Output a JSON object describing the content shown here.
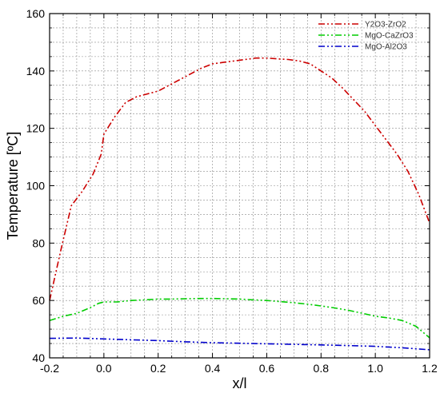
{
  "chart_data": {
    "type": "line",
    "xlabel": "x/l",
    "ylabel": "Temperature [ºC]",
    "xlim": [
      -0.2,
      1.2
    ],
    "ylim": [
      40,
      160
    ],
    "xticks": [
      -0.2,
      0.0,
      0.2,
      0.4,
      0.6,
      0.8,
      1.0,
      1.2
    ],
    "xtick_labels": [
      "-0.2",
      "0.0",
      "0.2",
      "0.4",
      "0.6",
      "0.8",
      "1.0",
      "1.2"
    ],
    "yticks": [
      40,
      60,
      80,
      100,
      120,
      140,
      160
    ],
    "ytick_labels": [
      "40",
      "60",
      "80",
      "100",
      "120",
      "140",
      "160"
    ],
    "grid": true,
    "legend_position": "top-right",
    "series": [
      {
        "name": "Y2O3-ZrO2",
        "color": "#cc0000",
        "x": [
          -0.2,
          -0.16,
          -0.12,
          -0.08,
          -0.04,
          -0.01,
          0.0,
          0.04,
          0.08,
          0.12,
          0.16,
          0.2,
          0.24,
          0.28,
          0.32,
          0.36,
          0.4,
          0.44,
          0.48,
          0.52,
          0.56,
          0.6,
          0.64,
          0.68,
          0.72,
          0.76,
          0.8,
          0.84,
          0.88,
          0.92,
          0.96,
          1.0,
          1.04,
          1.08,
          1.12,
          1.16,
          1.2
        ],
        "values": [
          60,
          77,
          93,
          98,
          104,
          111,
          118,
          124,
          129,
          131,
          132,
          133,
          135,
          137,
          139,
          141,
          142.5,
          143,
          143.5,
          144,
          144.5,
          144.5,
          144.2,
          144,
          143.5,
          142.5,
          140,
          137.5,
          134,
          130,
          126,
          121,
          116,
          111,
          105,
          97,
          87
        ]
      },
      {
        "name": "MgO-CaZrO3",
        "color": "#00cc00",
        "x": [
          -0.2,
          -0.15,
          -0.1,
          -0.05,
          -0.02,
          0.0,
          0.05,
          0.1,
          0.15,
          0.2,
          0.25,
          0.3,
          0.35,
          0.4,
          0.45,
          0.5,
          0.55,
          0.6,
          0.65,
          0.7,
          0.75,
          0.8,
          0.85,
          0.9,
          0.95,
          1.0,
          1.05,
          1.1,
          1.15,
          1.2
        ],
        "values": [
          53,
          54.5,
          55.5,
          57.5,
          59,
          59.5,
          59.5,
          60,
          60.2,
          60.5,
          60.5,
          60.6,
          60.7,
          60.7,
          60.6,
          60.5,
          60.2,
          60,
          59.6,
          59.2,
          58.7,
          58.1,
          57.4,
          56.6,
          55.6,
          54.5,
          53.9,
          53,
          51,
          47
        ]
      },
      {
        "name": "MgO-Al2O3",
        "color": "#0000cc",
        "x": [
          -0.2,
          -0.1,
          0.0,
          0.1,
          0.2,
          0.3,
          0.4,
          0.5,
          0.6,
          0.7,
          0.8,
          0.9,
          1.0,
          1.1,
          1.2
        ],
        "values": [
          46.8,
          46.9,
          46.6,
          46.3,
          46.0,
          45.6,
          45.3,
          45.1,
          44.9,
          44.7,
          44.5,
          44.3,
          44.0,
          43.5,
          42.8
        ]
      }
    ]
  }
}
